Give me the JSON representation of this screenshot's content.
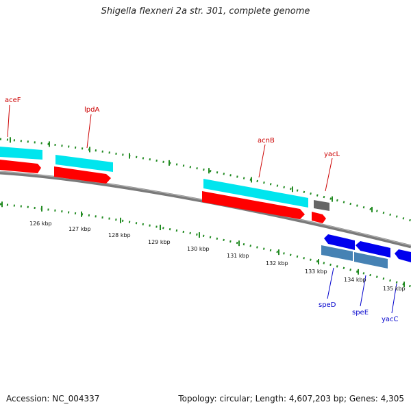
{
  "title": "Shigella flexneri 2a str. 301, complete genome",
  "footer": {
    "accession": "Accession: NC_004337",
    "summary": "Topology: circular; Length: 4,607,203 bp; Genes: 4,305"
  },
  "colors": {
    "backbone": "#7a7a7a",
    "cds_top": "#00e5ee",
    "cds_bottom": "#ff0000",
    "reverse_strand": "#0000ee",
    "reverse_strand_alt": "#4682b4",
    "gray_gene": "#666666",
    "tick": "#228b22",
    "forward_label": "#cc0000",
    "reverse_label": "#0000cc"
  },
  "scale_labels": [
    "126 kbp",
    "127 kbp",
    "128 kbp",
    "129 kbp",
    "130 kbp",
    "131 kbp",
    "132 kbp",
    "133 kbp",
    "134 kbp",
    "135 kbp"
  ],
  "forward_genes": [
    "aceF",
    "lpdA",
    "acnB",
    "yacL"
  ],
  "reverse_genes": [
    "speD",
    "speE",
    "yacC"
  ]
}
